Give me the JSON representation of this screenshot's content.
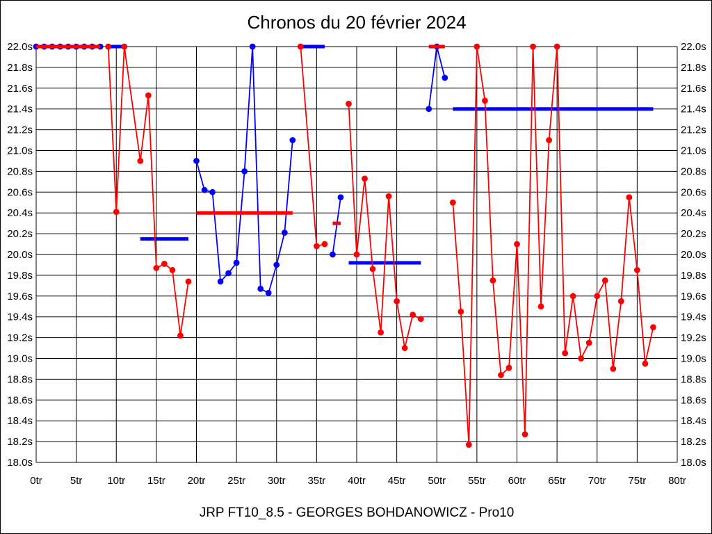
{
  "title": "Chronos du 20 février 2024",
  "footer": "JRP FT10_8.5 - GEORGES BOHDANOWICZ - Pro10",
  "chart_data": {
    "type": "line",
    "title": "Chronos du 20 février 2024",
    "x_unit": "tr",
    "y_unit": "s",
    "xlim": [
      0,
      80
    ],
    "ylim": [
      18.0,
      22.0
    ],
    "grid": true,
    "x_ticks": [
      "0tr",
      "5tr",
      "10tr",
      "15tr",
      "20tr",
      "25tr",
      "30tr",
      "35tr",
      "40tr",
      "45tr",
      "50tr",
      "55tr",
      "60tr",
      "65tr",
      "70tr",
      "75tr",
      "80tr"
    ],
    "x_tick_values": [
      0,
      5,
      10,
      15,
      20,
      25,
      30,
      35,
      40,
      45,
      50,
      55,
      60,
      65,
      70,
      75,
      80
    ],
    "y_ticks": [
      "18.0s",
      "18.2s",
      "18.4s",
      "18.6s",
      "18.8s",
      "19.0s",
      "19.2s",
      "19.4s",
      "19.6s",
      "19.8s",
      "20.0s",
      "20.2s",
      "20.4s",
      "20.6s",
      "20.8s",
      "21.0s",
      "21.2s",
      "21.4s",
      "21.6s",
      "21.8s",
      "22.0s"
    ],
    "y_tick_values": [
      18.0,
      18.2,
      18.4,
      18.6,
      18.8,
      19.0,
      19.2,
      19.4,
      19.6,
      19.8,
      20.0,
      20.2,
      20.4,
      20.6,
      20.8,
      21.0,
      21.2,
      21.4,
      21.6,
      21.8,
      22.0
    ],
    "colors": {
      "red_series": "#ff0000",
      "blue_series": "#0000ff",
      "grid": "#000000",
      "background": "#ffffff"
    },
    "red_sessions": [
      [
        [
          9,
          22.0
        ],
        [
          10,
          20.41
        ],
        [
          11,
          22.0
        ],
        [
          13,
          20.9
        ],
        [
          14,
          21.53
        ],
        [
          15,
          19.87
        ],
        [
          16,
          19.91
        ],
        [
          17,
          19.85
        ],
        [
          18,
          19.22
        ],
        [
          19,
          19.74
        ]
      ],
      [
        [
          33,
          22.0
        ],
        [
          35,
          20.08
        ],
        [
          36,
          20.1
        ]
      ],
      [
        [
          39,
          21.45
        ],
        [
          40,
          20.0
        ],
        [
          41,
          20.73
        ],
        [
          42,
          19.86
        ],
        [
          43,
          19.25
        ],
        [
          44,
          20.56
        ],
        [
          45,
          19.55
        ],
        [
          46,
          19.1
        ],
        [
          47,
          19.42
        ],
        [
          48,
          19.38
        ]
      ],
      [
        [
          52,
          20.5
        ],
        [
          53,
          19.45
        ],
        [
          54,
          18.17
        ],
        [
          55,
          22.0
        ],
        [
          56,
          21.48
        ],
        [
          57,
          19.75
        ],
        [
          58,
          18.84
        ],
        [
          59,
          18.91
        ],
        [
          60,
          20.1
        ],
        [
          61,
          18.27
        ],
        [
          62,
          22.0
        ],
        [
          63,
          19.5
        ],
        [
          64,
          21.1
        ],
        [
          65,
          22.0
        ],
        [
          66,
          19.05
        ],
        [
          67,
          19.6
        ],
        [
          68,
          19.0
        ],
        [
          69,
          19.15
        ],
        [
          70,
          19.6
        ],
        [
          71,
          19.75
        ],
        [
          72,
          18.9
        ],
        [
          73,
          19.55
        ],
        [
          74,
          20.55
        ],
        [
          75,
          19.85
        ],
        [
          76,
          18.95
        ],
        [
          77,
          19.3
        ]
      ]
    ],
    "blue_sessions": [
      [
        [
          0,
          22.0
        ],
        [
          1,
          22.0
        ],
        [
          2,
          22.0
        ],
        [
          3,
          22.0
        ],
        [
          4,
          22.0
        ],
        [
          5,
          22.0
        ],
        [
          6,
          22.0
        ],
        [
          7,
          22.0
        ],
        [
          8,
          22.0
        ]
      ],
      [
        [
          20,
          20.9
        ],
        [
          21,
          20.62
        ],
        [
          22,
          20.6
        ],
        [
          23,
          19.74
        ],
        [
          24,
          19.82
        ],
        [
          25,
          19.92
        ],
        [
          26,
          20.8
        ],
        [
          27,
          22.0
        ],
        [
          28,
          19.67
        ],
        [
          29,
          19.63
        ],
        [
          30,
          19.9
        ],
        [
          31,
          20.21
        ],
        [
          32,
          21.1
        ]
      ],
      [
        [
          37,
          20.0
        ],
        [
          38,
          20.55
        ]
      ],
      [
        [
          49,
          21.4
        ],
        [
          50,
          22.0
        ],
        [
          51,
          21.7
        ]
      ]
    ],
    "red_avg_bars": [
      {
        "from": 0,
        "to": 8,
        "value": 22.0
      },
      {
        "from": 20,
        "to": 32,
        "value": 20.4
      },
      {
        "from": 37,
        "to": 38,
        "value": 20.3
      },
      {
        "from": 49,
        "to": 51,
        "value": 22.0
      }
    ],
    "blue_avg_bars": [
      {
        "from": 9,
        "to": 11,
        "value": 22.0
      },
      {
        "from": 13,
        "to": 19,
        "value": 20.15
      },
      {
        "from": 33,
        "to": 36,
        "value": 22.0
      },
      {
        "from": 39,
        "to": 48,
        "value": 19.92
      },
      {
        "from": 52,
        "to": 77,
        "value": 21.4
      }
    ]
  }
}
